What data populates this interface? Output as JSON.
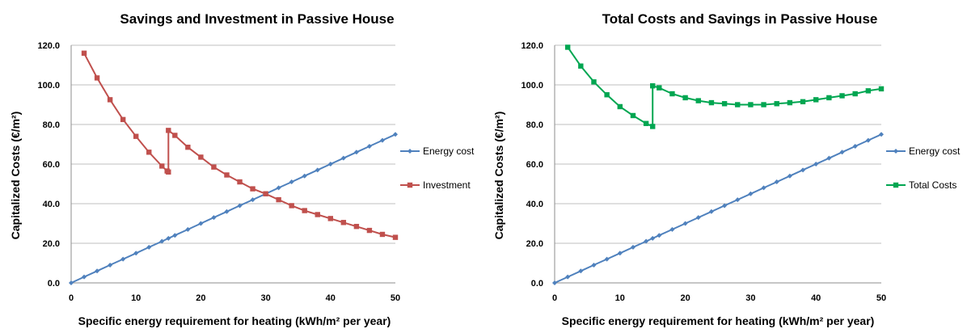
{
  "chart_data": [
    {
      "type": "line",
      "title": "Savings and Investment in Passive House",
      "xlabel": "Specific energy requirement for heating (kWh/m² per year)",
      "ylabel": "Capitalized Costs  (€/m²)",
      "xlim": [
        0,
        50
      ],
      "ylim": [
        0,
        120
      ],
      "xticks": [
        "0",
        "10",
        "20",
        "30",
        "40",
        "50"
      ],
      "yticks": [
        "0.0",
        "20.0",
        "40.0",
        "60.0",
        "80.0",
        "100.0",
        "120.0"
      ],
      "grid": true,
      "legend_position": "right",
      "series": [
        {
          "name": "Energy cost",
          "color": "#4f81bd",
          "marker": "diamond",
          "x": [
            0,
            2,
            4,
            6,
            8,
            10,
            12,
            14,
            15,
            16,
            18,
            20,
            22,
            24,
            26,
            28,
            30,
            32,
            34,
            36,
            38,
            40,
            42,
            44,
            46,
            48,
            50
          ],
          "y": [
            0,
            3,
            6,
            9,
            12,
            15,
            18,
            21,
            22.5,
            24,
            27,
            30,
            33,
            36,
            39,
            42,
            45,
            48,
            51,
            54,
            57,
            60,
            63,
            66,
            69,
            72,
            75
          ]
        },
        {
          "name": "Investment",
          "color": "#c0504d",
          "marker": "square",
          "x": [
            2,
            4,
            6,
            8,
            10,
            12,
            14,
            14.8,
            15,
            15,
            16,
            18,
            20,
            22,
            24,
            26,
            28,
            30,
            32,
            34,
            36,
            38,
            40,
            42,
            44,
            46,
            48,
            50
          ],
          "y": [
            116,
            103.5,
            92.5,
            82.5,
            74,
            66,
            59,
            56.5,
            56,
            77,
            74.5,
            68.5,
            63.5,
            58.5,
            54.5,
            51,
            47.5,
            45,
            42,
            39,
            36.5,
            34.5,
            32.5,
            30.5,
            28.5,
            26.5,
            24.5,
            23
          ]
        }
      ]
    },
    {
      "type": "line",
      "title": "Total Costs and Savings in Passive House",
      "xlabel": "Specific energy requirement for heating (kWh/m² per year)",
      "ylabel": "Capitalized Costs  (€/m²)",
      "xlim": [
        0,
        50
      ],
      "ylim": [
        0,
        120
      ],
      "xticks": [
        "0",
        "10",
        "20",
        "30",
        "40",
        "50"
      ],
      "yticks": [
        "0.0",
        "20.0",
        "40.0",
        "60.0",
        "80.0",
        "100.0",
        "120.0"
      ],
      "grid": true,
      "legend_position": "right",
      "series": [
        {
          "name": "Energy cost",
          "color": "#4f81bd",
          "marker": "diamond",
          "x": [
            0,
            2,
            4,
            6,
            8,
            10,
            12,
            14,
            15,
            16,
            18,
            20,
            22,
            24,
            26,
            28,
            30,
            32,
            34,
            36,
            38,
            40,
            42,
            44,
            46,
            48,
            50
          ],
          "y": [
            0,
            3,
            6,
            9,
            12,
            15,
            18,
            21,
            22.5,
            24,
            27,
            30,
            33,
            36,
            39,
            42,
            45,
            48,
            51,
            54,
            57,
            60,
            63,
            66,
            69,
            72,
            75
          ]
        },
        {
          "name": "Total Costs",
          "color": "#00a651",
          "marker": "square",
          "x": [
            2,
            4,
            6,
            8,
            10,
            12,
            14,
            15,
            15,
            16,
            18,
            20,
            22,
            24,
            26,
            28,
            30,
            32,
            34,
            36,
            38,
            40,
            42,
            44,
            46,
            48,
            50
          ],
          "y": [
            119,
            109.5,
            101.5,
            95,
            89,
            84.5,
            80.5,
            79,
            99.5,
            98.5,
            95.5,
            93.5,
            92,
            91,
            90.5,
            90,
            90,
            90,
            90.5,
            91,
            91.5,
            92.5,
            93.5,
            94.5,
            95.5,
            97,
            98
          ]
        }
      ]
    }
  ]
}
